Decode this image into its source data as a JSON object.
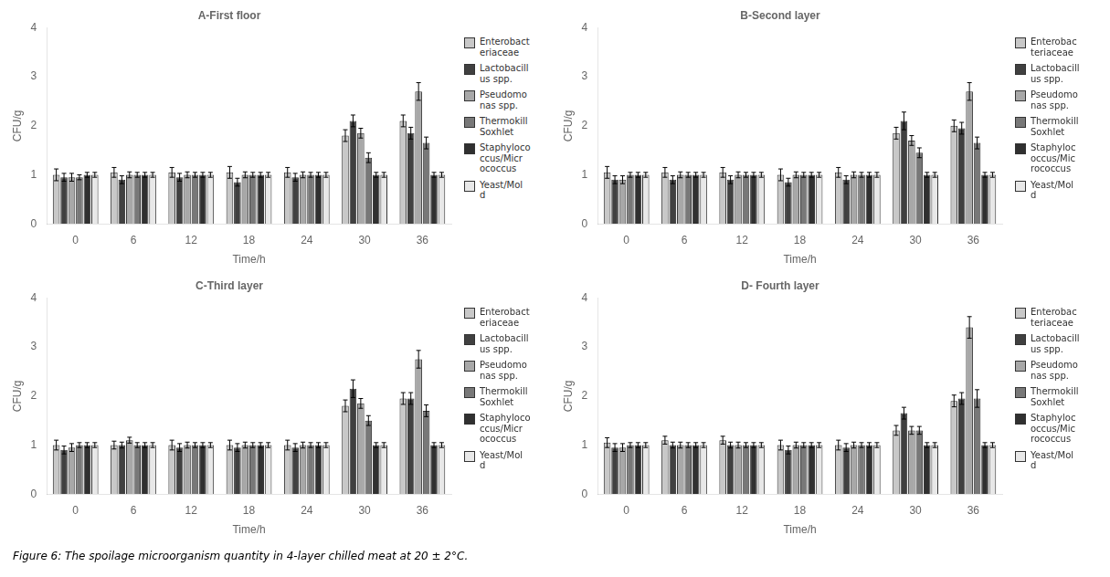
{
  "chart_data": [
    {
      "type": "bar",
      "title": "A-First floor",
      "xlabel": "Time/h",
      "ylabel": "CFU/g",
      "categories": [
        "0",
        "6",
        "12",
        "18",
        "24",
        "30",
        "36"
      ],
      "ylim": [
        0,
        4
      ],
      "yticks": [
        0,
        1,
        2,
        3,
        4
      ],
      "grid": false,
      "legend": "right",
      "series": [
        {
          "name": "Enterobact\neriaceae",
          "color": "#c8c8c8",
          "values": [
            1,
            1.05,
            1.05,
            1.05,
            1.05,
            1.8,
            2.1
          ],
          "errors": [
            0.12,
            0.1,
            0.1,
            0.12,
            0.1,
            0.12,
            0.12
          ]
        },
        {
          "name": "Lactobacill\nus spp.",
          "color": "#404040",
          "values": [
            0.95,
            0.9,
            0.95,
            0.85,
            0.95,
            2.1,
            1.85
          ],
          "errors": [
            0.08,
            0.08,
            0.08,
            0.08,
            0.08,
            0.12,
            0.12
          ]
        },
        {
          "name": "Pseudomo\nnas spp.",
          "color": "#a8a8a8",
          "values": [
            0.95,
            1,
            1,
            1,
            1,
            1.85,
            2.7
          ],
          "errors": [
            0.08,
            0.06,
            0.06,
            0.06,
            0.06,
            0.1,
            0.18
          ]
        },
        {
          "name": "Thermokill\nSoxhlet",
          "color": "#787878",
          "values": [
            0.95,
            1,
            1,
            1,
            1,
            1.35,
            1.65
          ],
          "errors": [
            0.05,
            0.05,
            0.05,
            0.05,
            0.05,
            0.1,
            0.12
          ]
        },
        {
          "name": "Staphyloco\nccus/Micr\nococcus",
          "color": "#303030",
          "values": [
            1,
            1,
            1,
            1,
            1,
            1,
            1
          ],
          "errors": [
            0.05,
            0.05,
            0.05,
            0.05,
            0.05,
            0.05,
            0.05
          ]
        },
        {
          "name": "Yeast/Mol\nd",
          "color": "#e8e8e8",
          "values": [
            1,
            1,
            1,
            1,
            1,
            1,
            1
          ],
          "errors": [
            0.05,
            0.05,
            0.05,
            0.05,
            0.05,
            0.05,
            0.05
          ]
        }
      ]
    },
    {
      "type": "bar",
      "title": "B-Second layer",
      "xlabel": "Time/h",
      "ylabel": "CFU/g",
      "categories": [
        "0",
        "6",
        "12",
        "18",
        "24",
        "30",
        "36"
      ],
      "ylim": [
        0,
        4
      ],
      "yticks": [
        0,
        1,
        2,
        3,
        4
      ],
      "grid": false,
      "legend": "right",
      "series": [
        {
          "name": "Enterobac\nteriaceae",
          "color": "#c8c8c8",
          "values": [
            1.05,
            1.05,
            1.05,
            1,
            1.05,
            1.85,
            2
          ],
          "errors": [
            0.12,
            0.1,
            0.1,
            0.12,
            0.1,
            0.12,
            0.12
          ]
        },
        {
          "name": "Lactobacill\nus spp.",
          "color": "#404040",
          "values": [
            0.9,
            0.9,
            0.9,
            0.85,
            0.9,
            2.1,
            1.95
          ],
          "errors": [
            0.08,
            0.08,
            0.08,
            0.08,
            0.08,
            0.18,
            0.12
          ]
        },
        {
          "name": "Pseudomo\nnas spp.",
          "color": "#a8a8a8",
          "values": [
            0.9,
            1,
            1,
            1,
            1,
            1.7,
            2.7
          ],
          "errors": [
            0.08,
            0.06,
            0.06,
            0.06,
            0.06,
            0.1,
            0.18
          ]
        },
        {
          "name": "Thermokill\nSoxhlet",
          "color": "#787878",
          "values": [
            1,
            1,
            1,
            1,
            1,
            1.45,
            1.65
          ],
          "errors": [
            0.05,
            0.05,
            0.05,
            0.05,
            0.05,
            0.1,
            0.12
          ]
        },
        {
          "name": "Staphyloc\noccus/Mic\nrococcus",
          "color": "#303030",
          "values": [
            1,
            1,
            1,
            1,
            1,
            1,
            1
          ],
          "errors": [
            0.05,
            0.05,
            0.05,
            0.05,
            0.05,
            0.05,
            0.05
          ]
        },
        {
          "name": "Yeast/Mol\nd",
          "color": "#e8e8e8",
          "values": [
            1,
            1,
            1,
            1,
            1,
            1,
            1
          ],
          "errors": [
            0.05,
            0.05,
            0.05,
            0.05,
            0.05,
            0.05,
            0.05
          ]
        }
      ]
    },
    {
      "type": "bar",
      "title": "C-Third layer",
      "xlabel": "Time/h",
      "ylabel": "CFU/g",
      "categories": [
        "0",
        "6",
        "12",
        "18",
        "24",
        "30",
        "36"
      ],
      "ylim": [
        0,
        4
      ],
      "yticks": [
        0,
        1,
        2,
        3,
        4
      ],
      "grid": false,
      "legend": "right",
      "series": [
        {
          "name": "Enterobact\neriaceae",
          "color": "#c8c8c8",
          "values": [
            1,
            1,
            1,
            1,
            1,
            1.8,
            1.95
          ],
          "errors": [
            0.1,
            0.08,
            0.1,
            0.1,
            0.1,
            0.12,
            0.12
          ]
        },
        {
          "name": "Lactobacill\nus spp.",
          "color": "#404040",
          "values": [
            0.9,
            1,
            0.95,
            0.95,
            0.95,
            2.15,
            1.95
          ],
          "errors": [
            0.08,
            0.06,
            0.08,
            0.08,
            0.08,
            0.18,
            0.12
          ]
        },
        {
          "name": "Pseudomo\nnas spp.",
          "color": "#a8a8a8",
          "values": [
            0.95,
            1.1,
            1,
            1,
            1,
            1.85,
            2.75
          ],
          "errors": [
            0.08,
            0.06,
            0.06,
            0.06,
            0.06,
            0.1,
            0.18
          ]
        },
        {
          "name": "Thermokill\nSoxhlet",
          "color": "#787878",
          "values": [
            1,
            1,
            1,
            1,
            1,
            1.5,
            1.7
          ],
          "errors": [
            0.05,
            0.05,
            0.05,
            0.05,
            0.05,
            0.1,
            0.12
          ]
        },
        {
          "name": "Staphyloco\nccus/Micr\nococcus",
          "color": "#303030",
          "values": [
            1,
            1,
            1,
            1,
            1,
            1,
            1
          ],
          "errors": [
            0.05,
            0.05,
            0.05,
            0.05,
            0.05,
            0.05,
            0.05
          ]
        },
        {
          "name": "Yeast/Mol\nd",
          "color": "#e8e8e8",
          "values": [
            1,
            1,
            1,
            1,
            1,
            1,
            1
          ],
          "errors": [
            0.05,
            0.05,
            0.05,
            0.05,
            0.05,
            0.05,
            0.05
          ]
        }
      ]
    },
    {
      "type": "bar",
      "title": "D- Fourth layer",
      "xlabel": "Time/h",
      "ylabel": "CFU/g",
      "categories": [
        "0",
        "6",
        "12",
        "18",
        "24",
        "30",
        "36"
      ],
      "ylim": [
        0,
        4
      ],
      "yticks": [
        0,
        1,
        2,
        3,
        4
      ],
      "grid": false,
      "legend": "right",
      "series": [
        {
          "name": "Enterobac\nteriaceae",
          "color": "#c8c8c8",
          "values": [
            1.05,
            1.1,
            1.1,
            1,
            1,
            1.3,
            1.9
          ],
          "errors": [
            0.1,
            0.08,
            0.08,
            0.1,
            0.1,
            0.1,
            0.12
          ]
        },
        {
          "name": "Lactobacill\nus spp.",
          "color": "#404040",
          "values": [
            0.95,
            1,
            1,
            0.9,
            0.95,
            1.65,
            1.95
          ],
          "errors": [
            0.08,
            0.06,
            0.06,
            0.08,
            0.08,
            0.12,
            0.12
          ]
        },
        {
          "name": "Pseudomo\nnas spp.",
          "color": "#a8a8a8",
          "values": [
            0.95,
            1,
            1,
            1,
            1,
            1.3,
            3.4
          ],
          "errors": [
            0.08,
            0.06,
            0.06,
            0.06,
            0.06,
            0.08,
            0.22
          ]
        },
        {
          "name": "Thermokill\nSoxhlet",
          "color": "#787878",
          "values": [
            1,
            1,
            1,
            1,
            1,
            1.3,
            1.95
          ],
          "errors": [
            0.05,
            0.05,
            0.05,
            0.05,
            0.05,
            0.08,
            0.18
          ]
        },
        {
          "name": "Staphyloc\noccus/Mic\nrococcus",
          "color": "#303030",
          "values": [
            1,
            1,
            1,
            1,
            1,
            1,
            1
          ],
          "errors": [
            0.05,
            0.05,
            0.05,
            0.05,
            0.05,
            0.05,
            0.05
          ]
        },
        {
          "name": "Yeast/Mol\nd",
          "color": "#e8e8e8",
          "values": [
            1,
            1,
            1,
            1,
            1,
            1,
            1
          ],
          "errors": [
            0.05,
            0.05,
            0.05,
            0.05,
            0.05,
            0.05,
            0.05
          ]
        }
      ]
    }
  ],
  "caption": "Figure 6: The spoilage microorganism quantity in 4-layer chilled meat at 20 ± 2°C."
}
